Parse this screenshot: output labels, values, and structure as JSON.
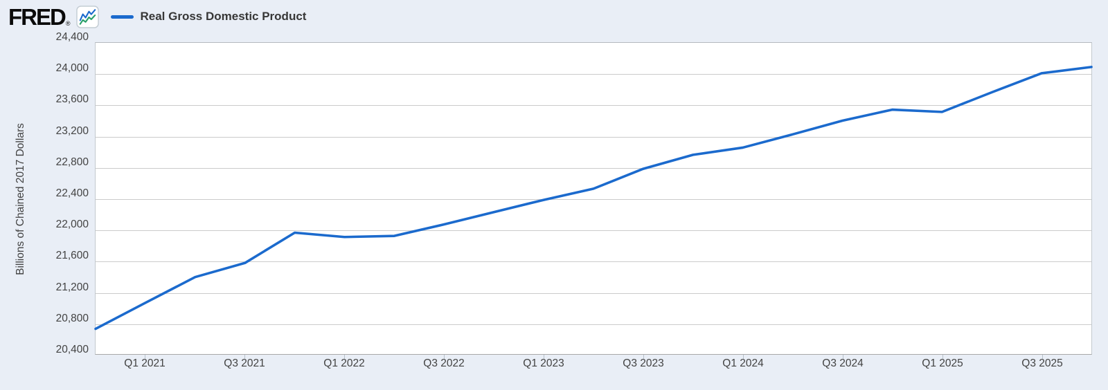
{
  "header": {
    "logo_text": "FRED",
    "logo_registered": "®",
    "legend_label": "Real Gross Domestic Product"
  },
  "icons": {
    "fred_logo_chart_icon": "mini-line-chart-icon"
  },
  "colors": {
    "background": "#e9eef6",
    "plot_background": "#ffffff",
    "gridline": "#cbcbcb",
    "axis_text": "#424242",
    "legend_text": "#373737",
    "line": "#1b6acd",
    "icon_blue": "#1b6acd",
    "icon_green": "#2aa06a"
  },
  "chart_data": {
    "type": "line",
    "title": "Real Gross Domestic Product",
    "ylabel": "Billions of Chained 2017 Dollars",
    "xlabel": "",
    "ylim": [
      20400,
      24400
    ],
    "ytick_step": 400,
    "ytick_labels": [
      "20,400",
      "20,800",
      "21,200",
      "21,600",
      "22,000",
      "22,400",
      "22,800",
      "23,200",
      "23,600",
      "24,000",
      "24,400"
    ],
    "grid": "horizontal",
    "legend_position": "top-left",
    "x": [
      "Q4 2020",
      "Q1 2021",
      "Q2 2021",
      "Q3 2021",
      "Q4 2021",
      "Q1 2022",
      "Q2 2022",
      "Q3 2022",
      "Q4 2022",
      "Q1 2023",
      "Q2 2023",
      "Q3 2023",
      "Q4 2023",
      "Q1 2024",
      "Q2 2024",
      "Q3 2024",
      "Q4 2024",
      "Q1 2025",
      "Q2 2025",
      "Q3 2025",
      "Q4 2025"
    ],
    "xtick_labels": [
      "Q1 2021",
      "Q3 2021",
      "Q1 2022",
      "Q3 2022",
      "Q1 2023",
      "Q3 2023",
      "Q1 2024",
      "Q3 2024",
      "Q1 2025",
      "Q3 2025"
    ],
    "series": [
      {
        "name": "Real Gross Domestic Product",
        "color": "#1b6acd",
        "values": [
          20724,
          21058,
          21389,
          21571,
          21960,
          21904,
          21919,
          22066,
          22225,
          22381,
          22526,
          22781,
          22961,
          23054,
          23224,
          23400,
          23542,
          23512,
          23765,
          24010,
          24090
        ]
      }
    ]
  }
}
